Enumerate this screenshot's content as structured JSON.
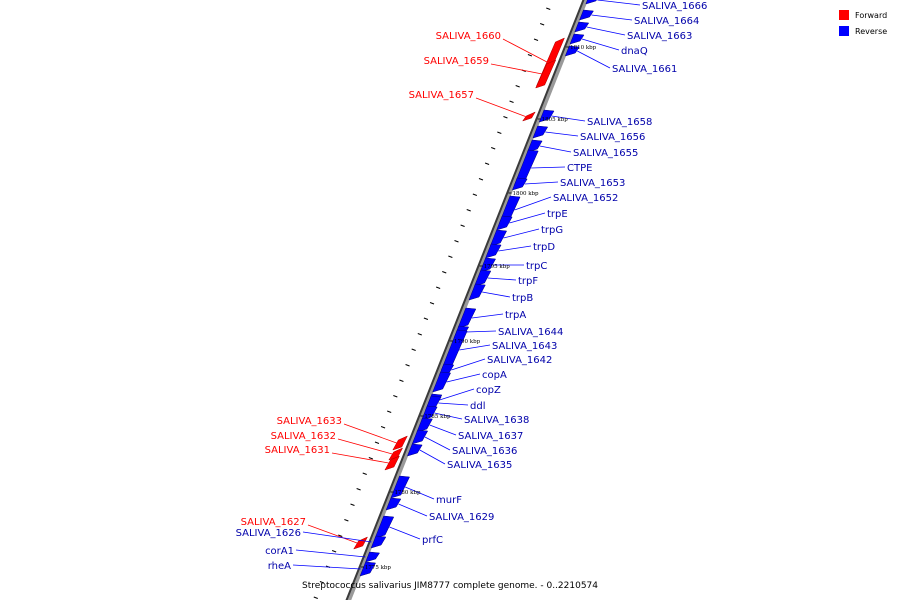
{
  "caption": "Streptococcus salivarius JIM8777 complete genome. - 0..2210574",
  "legend": {
    "forward": {
      "label": "Forward",
      "color": "#ff0000"
    },
    "reverse": {
      "label": "Reverse",
      "color": "#0000ff"
    }
  },
  "kbp_marks": [
    "1810 kbp",
    "1805 kbp",
    "1800 kbp",
    "1795 kbp",
    "1790 kbp",
    "1785 kbp",
    "1780 kbp",
    "1775 kbp"
  ],
  "forward_genes": [
    "SALIVA_1660",
    "SALIVA_1659",
    "SALIVA_1657",
    "SALIVA_1633",
    "SALIVA_1632",
    "SALIVA_1631",
    "SALIVA_1627"
  ],
  "reverse_genes": [
    "SALIVA_1666",
    "SALIVA_1664",
    "SALIVA_1663",
    "dnaQ",
    "SALIVA_1661",
    "SALIVA_1658",
    "SALIVA_1656",
    "SALIVA_1655",
    "CTPE",
    "SALIVA_1653",
    "SALIVA_1652",
    "trpE",
    "trpG",
    "trpD",
    "trpC",
    "trpF",
    "trpB",
    "trpA",
    "SALIVA_1644",
    "SALIVA_1643",
    "SALIVA_1642",
    "copA",
    "copZ",
    "ddl",
    "SALIVA_1638",
    "SALIVA_1637",
    "SALIVA_1636",
    "SALIVA_1635",
    "murF",
    "SALIVA_1629",
    "prfC",
    "SALIVA_1626",
    "corA1",
    "rheA"
  ]
}
